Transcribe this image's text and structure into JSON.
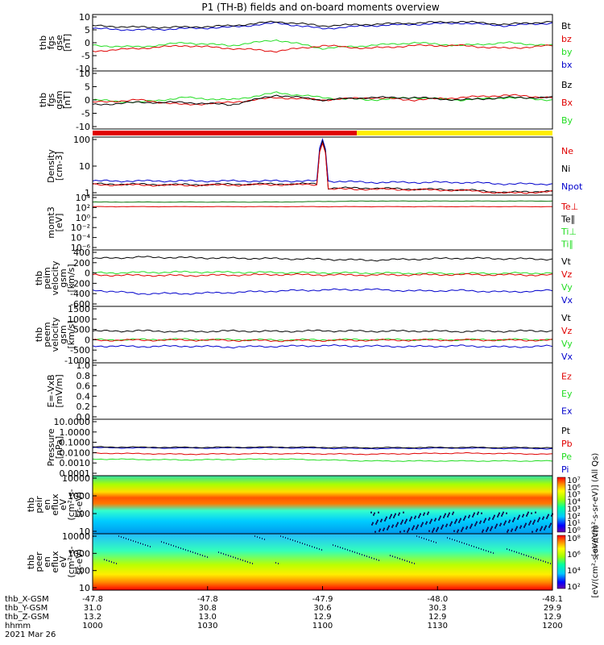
{
  "title": "P1 (TH-B) fields and on-board moments overview",
  "colors": {
    "black": "#000000",
    "red": "#e00000",
    "green": "#22dd22",
    "blue": "#0000cc",
    "yellow": "#ffee00",
    "darkgreen": "#117711"
  },
  "chart_data": {
    "type": "line",
    "x_axis": {
      "ticks": [
        "1000",
        "1030",
        "1100",
        "1130",
        "1200"
      ],
      "rows": [
        {
          "label": "thb_X-GSM",
          "values": [
            "-47.8",
            "-47.8",
            "-47.9",
            "-48.0",
            "-48.1"
          ]
        },
        {
          "label": "thb_Y-GSM",
          "values": [
            "31.0",
            "30.8",
            "30.6",
            "30.3",
            "29.9"
          ]
        },
        {
          "label": "thb_Z-GSM",
          "values": [
            "13.2",
            "13.0",
            "12.9",
            "12.9",
            "12.9"
          ]
        },
        {
          "label": "hhmm",
          "values": [
            "1000",
            "1030",
            "1100",
            "1130",
            "1200"
          ]
        }
      ],
      "date": "2021 Mar 26"
    },
    "panels": [
      {
        "id": "fgs-gse",
        "ylabel": [
          "thb",
          "fgs",
          "gse",
          "[nT]"
        ],
        "ylim": [
          -10,
          10
        ],
        "yticks": [
          "10",
          "5",
          "0",
          "-5",
          "-10"
        ],
        "legend": [
          {
            "text": "Bt",
            "color": "#000000"
          },
          {
            "text": "bz",
            "color": "#e00000"
          },
          {
            "text": "by",
            "color": "#22dd22"
          },
          {
            "text": "bx",
            "color": "#0000cc"
          }
        ],
        "series": [
          {
            "color": "#0000cc",
            "x": [
              0,
              0.1,
              0.2,
              0.3,
              0.4,
              0.5,
              0.6,
              0.7,
              0.8,
              0.9,
              1
            ],
            "y": [
              5,
              4.5,
              5,
              5.5,
              7,
              5,
              6,
              6.5,
              7,
              6,
              7
            ]
          },
          {
            "color": "#000000",
            "x": [
              0,
              0.1,
              0.2,
              0.3,
              0.4,
              0.5,
              0.6,
              0.7,
              0.8,
              0.9,
              1
            ],
            "y": [
              6,
              5.5,
              5.5,
              6,
              7.5,
              6,
              6.5,
              7,
              7.5,
              6.5,
              7.5
            ]
          },
          {
            "color": "#22dd22",
            "x": [
              0,
              0.1,
              0.2,
              0.3,
              0.4,
              0.5,
              0.6,
              0.7,
              0.8,
              0.9,
              1
            ],
            "y": [
              -1,
              -1.5,
              0,
              -1,
              1,
              -2,
              -1,
              0,
              -1,
              0,
              -1
            ]
          },
          {
            "color": "#e00000",
            "x": [
              0,
              0.1,
              0.2,
              0.3,
              0.4,
              0.5,
              0.6,
              0.7,
              0.8,
              0.9,
              1
            ],
            "y": [
              -3,
              -2,
              -1,
              -2,
              -3,
              -1,
              -2,
              -1,
              -1,
              -2,
              -1
            ]
          }
        ]
      },
      {
        "id": "fgs-gsm",
        "ylabel": [
          "thb",
          "fgs",
          "gsm",
          "[nT]"
        ],
        "ylim": [
          -12,
          12
        ],
        "yticks": [
          "10",
          "5",
          "0",
          "-5",
          "-10"
        ],
        "legend": [
          {
            "text": "Bz",
            "color": "#000000"
          },
          {
            "text": "Bx",
            "color": "#e00000"
          },
          {
            "text": "By",
            "color": "#22dd22"
          }
        ],
        "series": [
          {
            "color": "#22dd22",
            "x": [
              0,
              0.1,
              0.2,
              0.3,
              0.4,
              0.5,
              0.6,
              0.7,
              0.8,
              0.9,
              1
            ],
            "y": [
              0,
              -1,
              1,
              0,
              3,
              1,
              0,
              1,
              0,
              1,
              0
            ]
          },
          {
            "color": "#e00000",
            "x": [
              0,
              0.1,
              0.2,
              0.3,
              0.4,
              0.5,
              0.6,
              0.7,
              0.8,
              0.9,
              1
            ],
            "y": [
              -1,
              0,
              -2,
              -1,
              1,
              0,
              1,
              0,
              1,
              2,
              1
            ]
          },
          {
            "color": "#000000",
            "x": [
              0,
              0.1,
              0.2,
              0.3,
              0.4,
              0.5,
              0.6,
              0.7,
              0.8,
              0.9,
              1
            ],
            "y": [
              -2,
              -1,
              -1,
              -2,
              2,
              0,
              1,
              1,
              0,
              1,
              1
            ]
          }
        ]
      },
      {
        "id": "density",
        "ylabel": [
          "Density",
          "[cm-3]"
        ],
        "log": true,
        "ylim": [
          1,
          300
        ],
        "yticks": [
          "100",
          "10",
          "1"
        ],
        "legend": [
          {
            "text": "Ne",
            "color": "#e00000"
          },
          {
            "text": "Ni",
            "color": "#000000"
          },
          {
            "text": "Npot",
            "color": "#0000cc"
          }
        ],
        "series": [
          {
            "color": "#0000cc",
            "x": [
              0,
              0.2,
              0.4,
              0.49,
              0.5,
              0.51,
              0.6,
              0.7,
              0.8,
              0.9,
              1
            ],
            "y": [
              4,
              4,
              4,
              4,
              250,
              4,
              3.5,
              3.5,
              3.5,
              3,
              3
            ]
          },
          {
            "color": "#000000",
            "x": [
              0,
              0.2,
              0.4,
              0.49,
              0.5,
              0.51,
              0.6,
              0.7,
              0.8,
              0.9,
              1
            ],
            "y": [
              3,
              2.8,
              3,
              3,
              200,
              2,
              2,
              1.8,
              1.7,
              1.3,
              1.5
            ]
          },
          {
            "color": "#e00000",
            "x": [
              0,
              0.2,
              0.4,
              0.49,
              0.5,
              0.51,
              0.6,
              0.7,
              0.8,
              0.9,
              1
            ],
            "y": [
              2.8,
              2.6,
              2.8,
              2.8,
              180,
              1.8,
              1.8,
              1.7,
              1.6,
              1.2,
              1.4
            ]
          }
        ]
      },
      {
        "id": "mom-temp",
        "ylabel": [
          "momt3",
          "[eV]"
        ],
        "log": true,
        "ylim": [
          1e-07,
          100000
        ],
        "yticks": [
          "10⁴",
          "10²",
          "10⁰",
          "10⁻²",
          "10⁻⁴",
          "10⁻⁶"
        ],
        "legend": [
          {
            "text": "Te⊥",
            "color": "#e00000"
          },
          {
            "text": "Te∥",
            "color": "#000000"
          },
          {
            "text": "Ti⊥",
            "color": "#22dd22"
          },
          {
            "text": "Ti∥",
            "color": "#22dd22"
          }
        ],
        "series": [
          {
            "color": "#117711",
            "x": [
              0,
              0.4,
              0.6,
              1
            ],
            "y": [
              3000,
              3000,
              5000,
              5000
            ]
          },
          {
            "color": "#e00000",
            "x": [
              0,
              1
            ],
            "y": [
              300,
              300
            ]
          }
        ]
      },
      {
        "id": "peim-vel",
        "ylabel": [
          "thb",
          "peim",
          "velocity",
          "gsm",
          "[km/s]"
        ],
        "ylim": [
          -600,
          500
        ],
        "yticks": [
          "400",
          "200",
          "0",
          "-200",
          "-400",
          "-600"
        ],
        "legend": [
          {
            "text": "Vt",
            "color": "#000000"
          },
          {
            "text": "Vz",
            "color": "#e00000"
          },
          {
            "text": "Vy",
            "color": "#22dd22"
          },
          {
            "text": "Vx",
            "color": "#0000cc"
          }
        ],
        "series": [
          {
            "color": "#000000",
            "x": [
              0,
              0.1,
              0.2,
              0.3,
              0.4,
              0.5,
              0.6,
              0.7,
              0.8,
              0.9,
              1
            ],
            "y": [
              330,
              360,
              350,
              340,
              330,
              320,
              300,
              320,
              340,
              330,
              320
            ]
          },
          {
            "color": "#22dd22",
            "x": [
              0,
              0.2,
              0.4,
              0.6,
              0.8,
              1
            ],
            "y": [
              50,
              70,
              60,
              50,
              40,
              50
            ]
          },
          {
            "color": "#e00000",
            "x": [
              0,
              0.2,
              0.4,
              0.6,
              0.8,
              1
            ],
            "y": [
              10,
              0,
              20,
              10,
              20,
              10
            ]
          },
          {
            "color": "#0000cc",
            "x": [
              0,
              0.1,
              0.2,
              0.3,
              0.4,
              0.5,
              0.6,
              0.7,
              0.8,
              0.9,
              1
            ],
            "y": [
              -280,
              -350,
              -350,
              -330,
              -300,
              -280,
              -270,
              -300,
              -290,
              -320,
              -290
            ]
          }
        ]
      },
      {
        "id": "peem-vel",
        "ylabel": [
          "thb",
          "peem",
          "velocity",
          "gsm",
          "[km/s]"
        ],
        "ylim": [
          -1000,
          1500
        ],
        "yticks": [
          "1500",
          "1000",
          "500",
          "0",
          "-500",
          "-1000"
        ],
        "legend": [
          {
            "text": "Vt",
            "color": "#000000"
          },
          {
            "text": "Vz",
            "color": "#e00000"
          },
          {
            "text": "Vy",
            "color": "#22dd22"
          },
          {
            "text": "Vx",
            "color": "#0000cc"
          }
        ],
        "series": [
          {
            "color": "#000000",
            "x": [
              0,
              0.1,
              0.2,
              0.3,
              0.4,
              0.5,
              0.6,
              0.7,
              0.8,
              0.9,
              1
            ],
            "y": [
              400,
              420,
              380,
              410,
              390,
              420,
              400,
              410,
              390,
              400,
              420
            ]
          },
          {
            "color": "#22dd22",
            "x": [
              0,
              0.2,
              0.4,
              0.6,
              0.8,
              1
            ],
            "y": [
              20,
              40,
              10,
              30,
              20,
              30
            ]
          },
          {
            "color": "#e00000",
            "x": [
              0,
              0.2,
              0.4,
              0.6,
              0.8,
              1
            ],
            "y": [
              0,
              10,
              -20,
              0,
              10,
              0
            ]
          },
          {
            "color": "#0000cc",
            "x": [
              0,
              0.1,
              0.2,
              0.3,
              0.4,
              0.5,
              0.6,
              0.7,
              0.8,
              0.9,
              1
            ],
            "y": [
              -250,
              -280,
              -260,
              -300,
              -270,
              -240,
              -260,
              -280,
              -250,
              -300,
              -260
            ]
          }
        ]
      },
      {
        "id": "efield",
        "ylabel": [
          "E=-VxB",
          "[mV/m]"
        ],
        "ylim": [
          0,
          1
        ],
        "yticks": [
          "1.0",
          "0.8",
          "0.6",
          "0.4",
          "0.2",
          "0.0"
        ],
        "legend": [
          {
            "text": "Ez",
            "color": "#e00000"
          },
          {
            "text": "Ey",
            "color": "#22dd22"
          },
          {
            "text": "Ex",
            "color": "#0000cc"
          }
        ],
        "series": []
      },
      {
        "id": "pressure",
        "ylabel": [
          "Pressure",
          "[nPa]"
        ],
        "log": true,
        "ylim": [
          0.0001,
          10
        ],
        "yticks": [
          "10.0000",
          "1.0000",
          "0.1000",
          "0.0100",
          "0.0010",
          "0.0001"
        ],
        "legend": [
          {
            "text": "Pt",
            "color": "#000000"
          },
          {
            "text": "Pb",
            "color": "#e00000"
          },
          {
            "text": "Pe",
            "color": "#22dd22"
          },
          {
            "text": "Pi",
            "color": "#0000cc"
          }
        ],
        "series": [
          {
            "color": "#0000cc",
            "x": [
              0,
              0.2,
              0.4,
              0.6,
              0.8,
              1
            ],
            "y": [
              0.03,
              0.028,
              0.03,
              0.025,
              0.028,
              0.025
            ]
          },
          {
            "color": "#000000",
            "x": [
              0,
              0.2,
              0.4,
              0.6,
              0.8,
              1
            ],
            "y": [
              0.035,
              0.032,
              0.034,
              0.03,
              0.032,
              0.03
            ]
          },
          {
            "color": "#e00000",
            "x": [
              0,
              0.2,
              0.4,
              0.6,
              0.8,
              1
            ],
            "y": [
              0.01,
              0.008,
              0.009,
              0.008,
              0.01,
              0.008
            ]
          },
          {
            "color": "#22dd22",
            "x": [
              0,
              0.2,
              0.4,
              0.6,
              0.8,
              1
            ],
            "y": [
              0.003,
              0.0025,
              0.003,
              0.002,
              0.002,
              0.002
            ]
          }
        ]
      },
      {
        "id": "peir-eflux",
        "type": "heatmap",
        "ylabel": [
          "thb",
          "peir",
          "en",
          "eflux",
          "eV",
          "(cm²-s-",
          "sr-eV)"
        ],
        "log": true,
        "ylim": [
          5,
          20000
        ],
        "yticks": [
          "10000",
          "1000",
          "100",
          "10"
        ],
        "colorbar": {
          "label": "[eV/(cm²-s-sr-eV)] (All Qs)",
          "ticks": [
            "10⁷",
            "10⁶",
            "10⁵",
            "10⁴",
            "10³",
            "10²",
            "10¹",
            "10⁰"
          ]
        }
      },
      {
        "id": "peer-eflux",
        "type": "heatmap",
        "ylabel": [
          "thb",
          "peer",
          "en",
          "eflux",
          "eV",
          "(cm²-s-",
          "sr-eV)"
        ],
        "log": true,
        "ylim": [
          5,
          20000
        ],
        "yticks": [
          "10000",
          "1000",
          "100",
          "10"
        ],
        "colorbar": {
          "label": "[eV/(cm²-s-sr-eV)]",
          "ticks": [
            "10⁸",
            "10⁶",
            "10⁴",
            "10²"
          ]
        }
      }
    ]
  }
}
